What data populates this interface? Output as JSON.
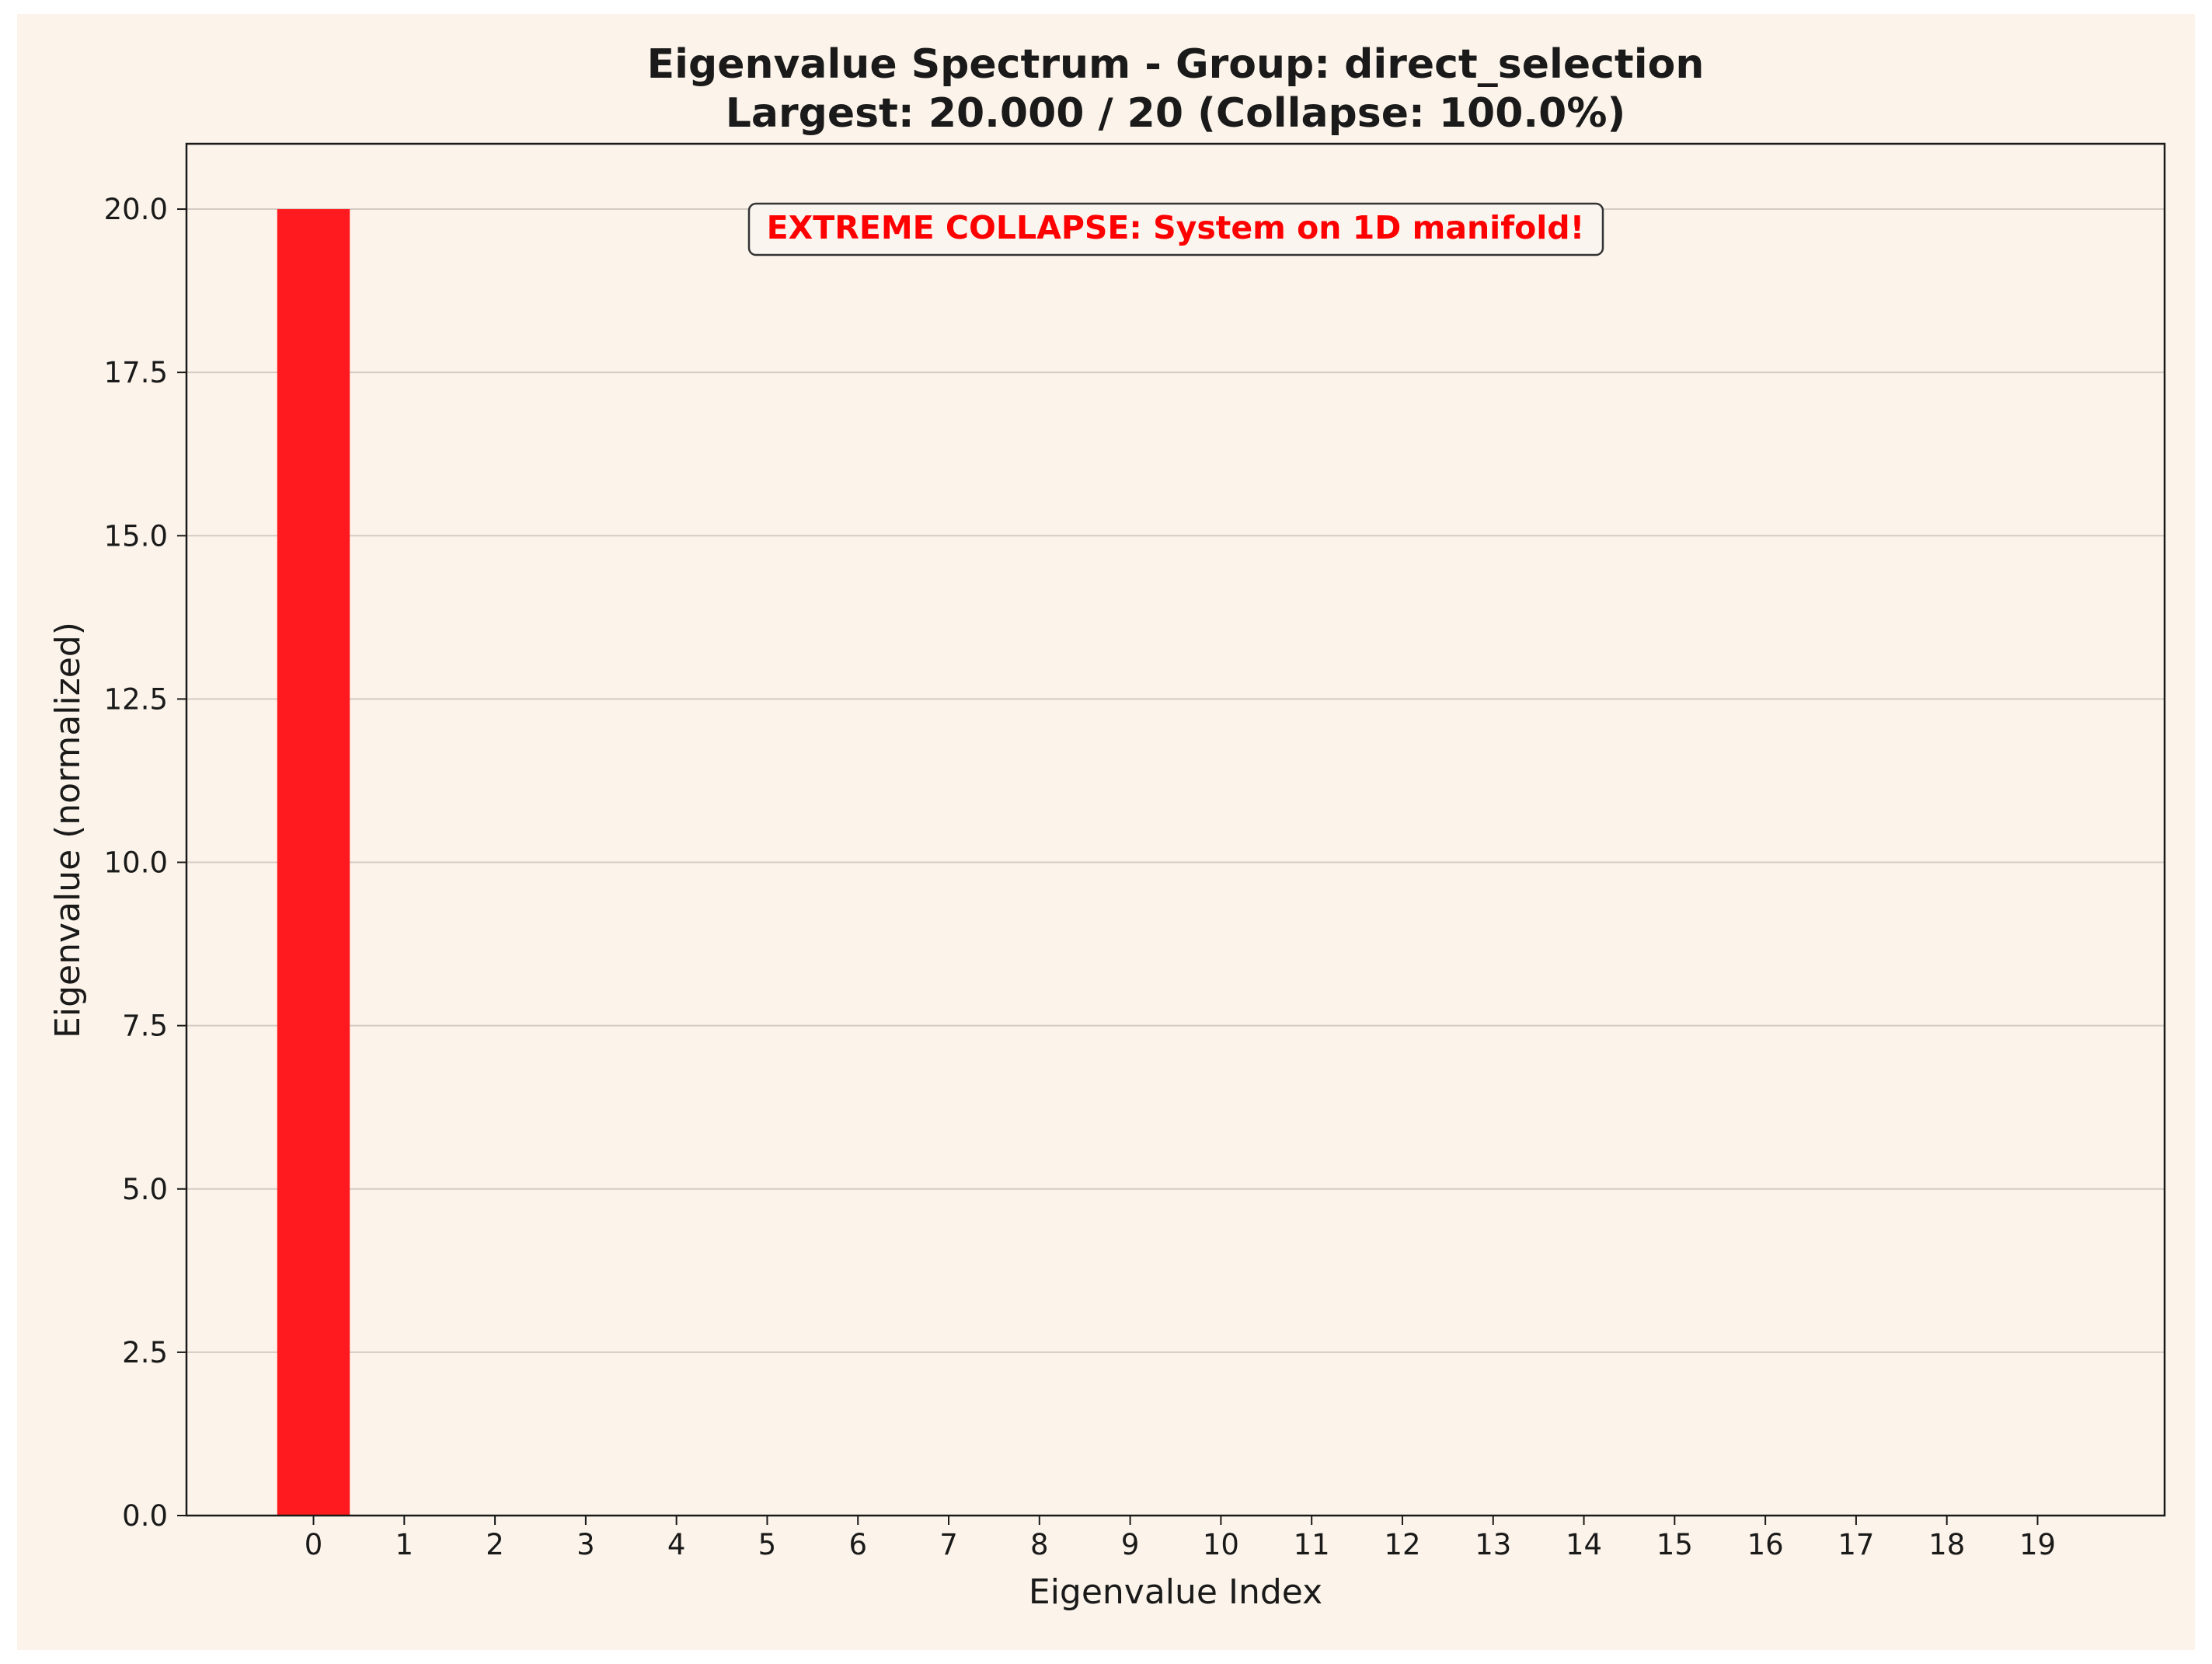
{
  "colors": {
    "figure_background": "#fcf4ea",
    "plot_background": "#fcf4ea",
    "bar": "#ff1a1f",
    "grid": "#d4ccc4",
    "axis": "#1a1a1a",
    "annotation_text": "#ff0000",
    "annotation_box_bg": "#fbf5ef",
    "annotation_box_border": "#333333"
  },
  "chart_data": {
    "type": "bar",
    "title": "Eigenvalue Spectrum - Group: direct_selection",
    "subtitle": "Largest: 20.000 / 20 (Collapse: 100.0%)",
    "xlabel": "Eigenvalue Index",
    "ylabel": "Eigenvalue (normalized)",
    "categories": [
      "0",
      "1",
      "2",
      "3",
      "4",
      "5",
      "6",
      "7",
      "8",
      "9",
      "10",
      "11",
      "12",
      "13",
      "14",
      "15",
      "16",
      "17",
      "18",
      "19"
    ],
    "values": [
      20.0,
      0,
      0,
      0,
      0,
      0,
      0,
      0,
      0,
      0,
      0,
      0,
      0,
      0,
      0,
      0,
      0,
      0,
      0,
      0
    ],
    "xlim": [
      -1.4,
      20.4
    ],
    "ylim": [
      0,
      21
    ],
    "yticks": [
      0,
      2.5,
      5,
      7.5,
      10,
      12.5,
      15,
      17.5,
      20
    ],
    "ytick_labels": [
      "0.0",
      "2.5",
      "5.0",
      "7.5",
      "10.0",
      "12.5",
      "15.0",
      "17.5",
      "20.0"
    ],
    "grid": "y-axis",
    "annotation": "EXTREME COLLAPSE: System on 1D manifold!"
  }
}
